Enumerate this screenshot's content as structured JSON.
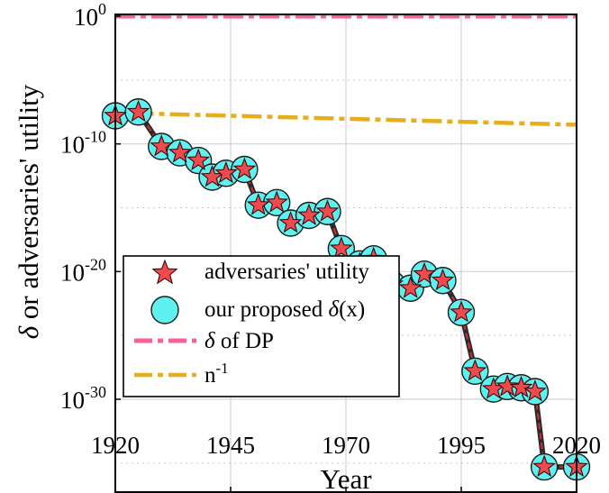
{
  "chart_data": {
    "type": "line",
    "xlabel": "Year",
    "ylabel_symbol": "δ",
    "ylabel_rest": " or adversaries' utility",
    "xlim": [
      1920,
      2020
    ],
    "ylim_log10": [
      -36,
      0
    ],
    "y_scale": "log",
    "grid": true,
    "legend_position": "bottom-left",
    "x_ticks": [
      {
        "value": 1920,
        "label": "1920"
      },
      {
        "value": 1945,
        "label": "1945"
      },
      {
        "value": 1970,
        "label": "1970"
      },
      {
        "value": 1995,
        "label": "1995"
      },
      {
        "value": 2020,
        "label": "2020"
      }
    ],
    "y_ticks": [
      {
        "exp": 0,
        "base": "10",
        "sup": "0"
      },
      {
        "exp": -10,
        "base": "10",
        "sup": "-10"
      },
      {
        "exp": -20,
        "base": "10",
        "sup": "-20"
      },
      {
        "exp": -30,
        "base": "10",
        "sup": "-30"
      }
    ],
    "y_minor_grid_exp": [
      -5,
      -15,
      -25,
      -35
    ],
    "x": [
      1920,
      1925,
      1930,
      1934,
      1938,
      1941,
      1944,
      1948,
      1951,
      1955,
      1958,
      1962,
      1966,
      1969,
      1973,
      1976,
      1980,
      1984,
      1987,
      1991,
      1995,
      1998,
      2002,
      2005,
      2008,
      2011,
      2013,
      2020
    ],
    "series": [
      {
        "name": "adversaries' utility",
        "marker": "star",
        "color": "#f04a4f",
        "log10_values": [
          -7.8,
          -7.5,
          -10.2,
          -10.7,
          -11.3,
          -12.6,
          -12.3,
          -12.0,
          -14.8,
          -14.6,
          -16.2,
          -15.6,
          -15.3,
          -18.2,
          -19.4,
          -19.0,
          -21.0,
          -21.3,
          -20.2,
          -20.7,
          -23.2,
          -27.8,
          -29.2,
          -29.0,
          -29.1,
          -29.4,
          -35.3,
          -35.3
        ]
      },
      {
        "name_prefix": "our proposed ",
        "name_symbol": "δ",
        "name_suffix": "(x)",
        "marker": "circle",
        "color": "#5ff0f0"
      },
      {
        "name_symbol": "δ",
        "name_suffix": " of DP",
        "style": "dash-dot",
        "color": "#f7609b",
        "log10_values_endpoints": [
          0,
          0
        ]
      },
      {
        "name_base": "n",
        "name_sup": "-1",
        "style": "dash-dot",
        "color": "#e6ad1c",
        "log10_values_endpoints": [
          -7.6,
          -8.5
        ]
      }
    ]
  }
}
